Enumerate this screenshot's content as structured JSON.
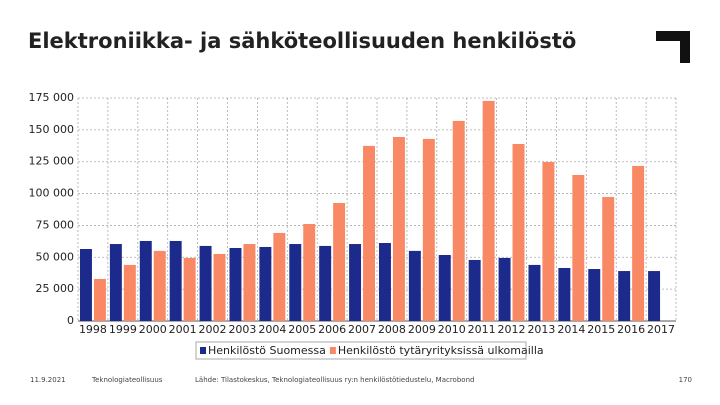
{
  "chart_data": {
    "type": "bar",
    "title": "Elektroniikka- ja sähköteollisuuden henkilöstö",
    "categories": [
      "1998",
      "1999",
      "2000",
      "2001",
      "2002",
      "2003",
      "2004",
      "2005",
      "2006",
      "2007",
      "2008",
      "2009",
      "2010",
      "2011",
      "2012",
      "2013",
      "2014",
      "2015",
      "2016",
      "2017"
    ],
    "series": [
      {
        "name": "Henkilöstö Suomessa",
        "color": "#1c2a8c",
        "values": [
          56500,
          60400,
          62800,
          62800,
          58900,
          57300,
          58100,
          60400,
          58900,
          60400,
          61200,
          55000,
          51800,
          47900,
          49500,
          44000,
          41600,
          40800,
          39200,
          39200
        ]
      },
      {
        "name": "Henkilöstö tytäryrityksissä ulkomailla",
        "color": "#f98864",
        "values": [
          33000,
          44000,
          55000,
          49500,
          52600,
          60400,
          69100,
          76100,
          92600,
          137400,
          144400,
          142900,
          157000,
          172700,
          138900,
          124800,
          114600,
          97300,
          121700,
          null
        ]
      }
    ],
    "ylim": [
      0,
      175000
    ],
    "yticks": [
      0,
      {
        "value": 25000,
        "label": "25 000"
      },
      {
        "value": 50000,
        "label": "50 000"
      },
      {
        "value": 75000,
        "label": "75 000"
      },
      {
        "value": 100000,
        "label": "100 000"
      },
      {
        "value": 125000,
        "label": "125 000"
      },
      {
        "value": 150000,
        "label": "150 000"
      },
      {
        "value": 175000,
        "label": "175 000"
      }
    ],
    "grid": true,
    "legend": "bottom",
    "footer": {
      "date": "11.9.2021",
      "organization": "Teknologiateollisuus",
      "source": "Lähde: Tilastokeskus, Teknologiateollisuus ry:n henkilöstötiedustelu, Macrobond",
      "page": "170"
    }
  }
}
